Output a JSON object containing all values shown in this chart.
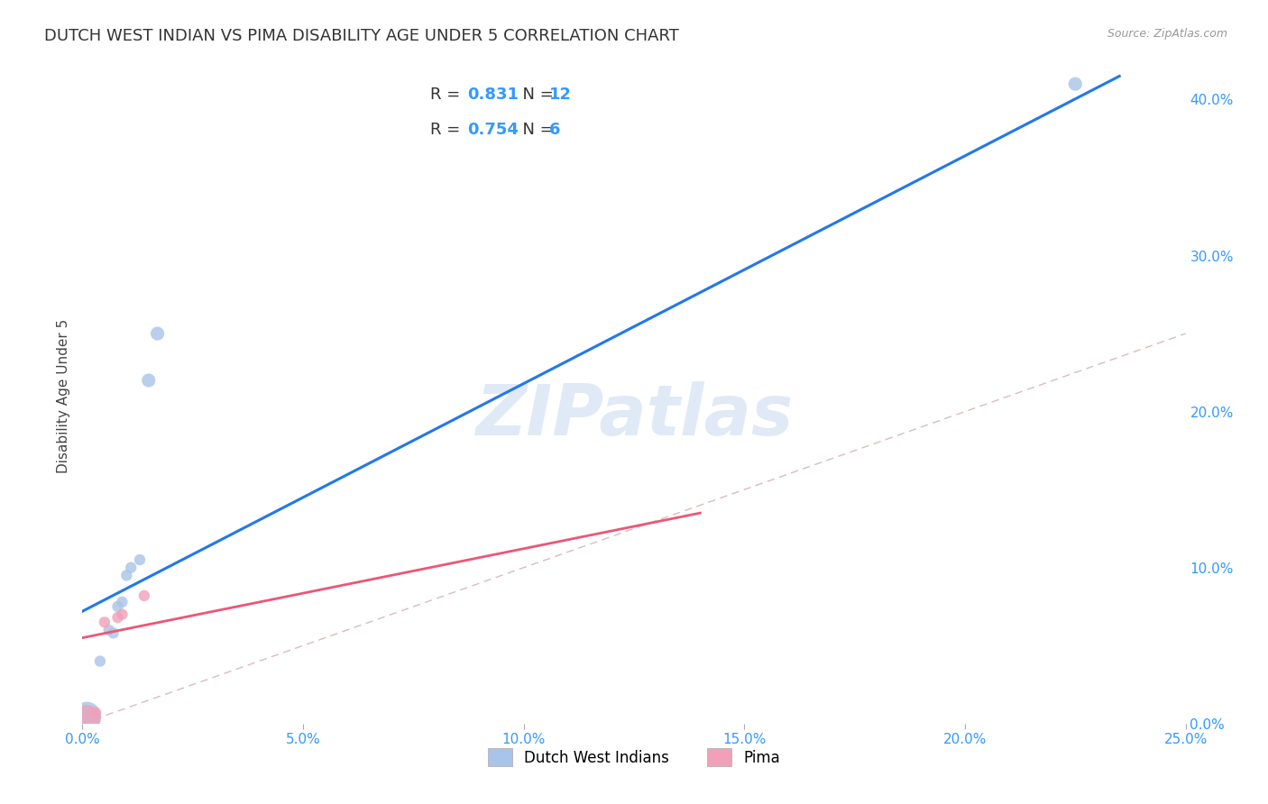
{
  "title": "DUTCH WEST INDIAN VS PIMA DISABILITY AGE UNDER 5 CORRELATION CHART",
  "source": "Source: ZipAtlas.com",
  "ylabel": "Disability Age Under 5",
  "xlabel_dutch": "Dutch West Indians",
  "xlabel_pima": "Pima",
  "watermark": "ZIPatlas",
  "xlim": [
    0.0,
    0.25
  ],
  "ylim": [
    0.0,
    0.42
  ],
  "xticks": [
    0.0,
    0.05,
    0.1,
    0.15,
    0.2,
    0.25
  ],
  "yticks_right": [
    0.0,
    0.1,
    0.2,
    0.3,
    0.4
  ],
  "dutch_color": "#a8c4e8",
  "pima_color": "#f0a0b8",
  "dutch_line_color": "#2277ee",
  "pima_line_color": "#ee5577",
  "diag_line_color": "#ddbbbb",
  "dutch_points_x": [
    0.001,
    0.004,
    0.006,
    0.007,
    0.008,
    0.009,
    0.01,
    0.011,
    0.013,
    0.015,
    0.017,
    0.225
  ],
  "dutch_points_y": [
    0.005,
    0.04,
    0.06,
    0.058,
    0.075,
    0.078,
    0.095,
    0.1,
    0.105,
    0.22,
    0.25,
    0.41
  ],
  "pima_points_x": [
    0.001,
    0.003,
    0.005,
    0.008,
    0.009,
    0.014
  ],
  "pima_points_y": [
    0.003,
    0.007,
    0.065,
    0.068,
    0.07,
    0.082
  ],
  "dutch_sizes": [
    500,
    80,
    80,
    80,
    80,
    80,
    80,
    80,
    80,
    120,
    120,
    120
  ],
  "pima_sizes": [
    500,
    80,
    80,
    80,
    80,
    80
  ],
  "dutch_line_x0": 0.0,
  "dutch_line_x1": 0.235,
  "dutch_line_y0": 0.072,
  "dutch_line_y1": 0.415,
  "pima_line_x0": 0.0,
  "pima_line_x1": 0.14,
  "pima_line_y0": 0.055,
  "pima_line_y1": 0.135,
  "background_color": "#ffffff",
  "grid_color": "#cccccc",
  "title_fontsize": 13,
  "axis_label_fontsize": 11,
  "tick_fontsize": 11,
  "legend_fontsize": 13
}
